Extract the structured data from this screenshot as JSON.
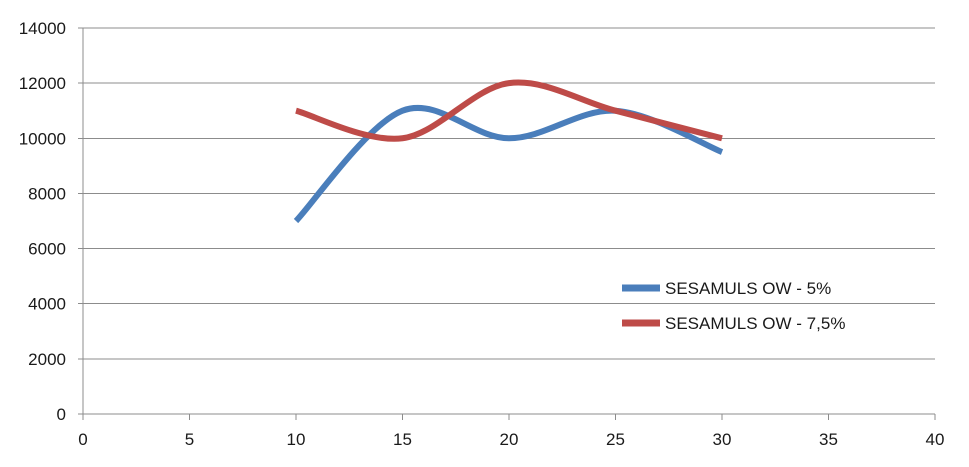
{
  "chart_data": {
    "type": "line",
    "xlim": [
      0,
      40
    ],
    "ylim": [
      0,
      14000
    ],
    "x_ticks": [
      0,
      5,
      10,
      15,
      20,
      25,
      30,
      35,
      40
    ],
    "y_ticks": [
      0,
      2000,
      4000,
      6000,
      8000,
      10000,
      12000,
      14000
    ],
    "grid": "horizontal",
    "legend_position": "right",
    "smooth": true,
    "series": [
      {
        "name": "SESAMULS OW - 5%",
        "color": "#4a7ebb",
        "x": [
          10,
          15,
          20,
          25,
          30
        ],
        "y": [
          7000,
          11000,
          10000,
          11000,
          9500
        ]
      },
      {
        "name": "SESAMULS OW - 7,5%",
        "color": "#be4b48",
        "x": [
          10,
          15,
          20,
          25,
          30
        ],
        "y": [
          11000,
          10000,
          12000,
          11000,
          10000
        ]
      }
    ]
  }
}
